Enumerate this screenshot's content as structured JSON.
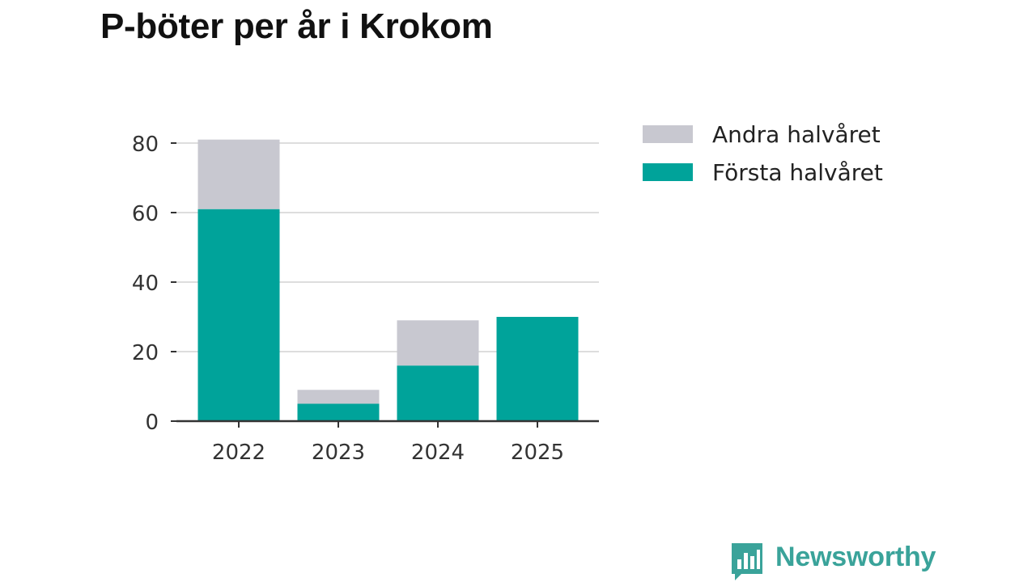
{
  "title": "P-böter per år i Krokom",
  "brand": {
    "name": "Newsworthy",
    "color": "#3aa39a"
  },
  "chart_data": {
    "type": "bar",
    "stacked": true,
    "title": "P-böter per år i Krokom",
    "xlabel": "",
    "ylabel": "",
    "categories": [
      "2022",
      "2023",
      "2024",
      "2025"
    ],
    "series": [
      {
        "name": "Första halvåret",
        "values": [
          61,
          5,
          16,
          30
        ],
        "color": "#00a39a"
      },
      {
        "name": "Andra halvåret",
        "values": [
          20,
          4,
          13,
          0
        ],
        "color": "#c8c8d0"
      }
    ],
    "ylim": [
      0,
      80
    ],
    "yticks": [
      0,
      20,
      40,
      60,
      80
    ],
    "grid": true,
    "legend_position": "top-right",
    "legend_order": [
      "Andra halvåret",
      "Första halvåret"
    ]
  }
}
